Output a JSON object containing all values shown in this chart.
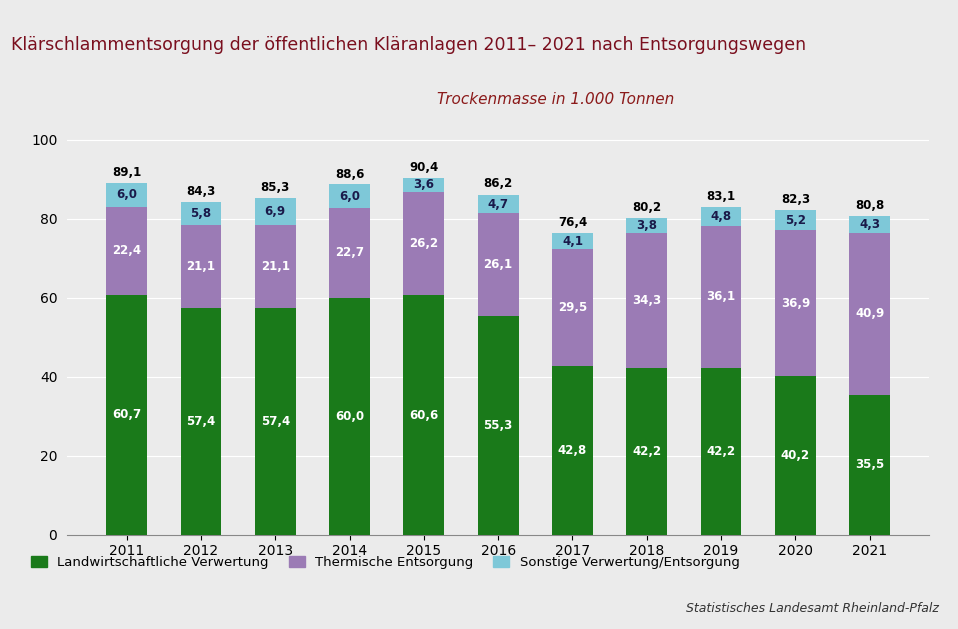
{
  "title": "Klärschlammentsorgung der öffentlichen Kläranlagen 2011– 2021 nach Entsorgungswegen",
  "subtitle": "Trockenmasse in 1.000 Tonnen",
  "years": [
    2011,
    2012,
    2013,
    2014,
    2015,
    2016,
    2017,
    2018,
    2019,
    2020,
    2021
  ],
  "landwirtschaft": [
    60.7,
    57.4,
    57.4,
    60.0,
    60.6,
    55.3,
    42.8,
    42.2,
    42.2,
    40.2,
    35.5
  ],
  "thermisch": [
    22.4,
    21.1,
    21.1,
    22.7,
    26.2,
    26.1,
    29.5,
    34.3,
    36.1,
    36.9,
    40.9
  ],
  "sonstige": [
    6.0,
    5.8,
    6.9,
    6.0,
    3.6,
    4.7,
    4.1,
    3.8,
    4.8,
    5.2,
    4.3
  ],
  "totals": [
    89.1,
    84.3,
    85.3,
    88.6,
    90.4,
    86.2,
    76.4,
    80.2,
    83.1,
    82.3,
    80.8
  ],
  "color_landwirtschaft": "#1a7a1a",
  "color_thermisch": "#9b7bb5",
  "color_sonstige": "#7ec8d8",
  "color_title": "#7a0f1e",
  "color_subtitle": "#8b1a1a",
  "color_background": "#ebebeb",
  "color_title_bar": "#7a0f1e",
  "color_header_bg": "#e8e8e8",
  "ylim": [
    0,
    105
  ],
  "yticks": [
    0,
    20,
    40,
    60,
    80,
    100
  ],
  "legend_landwirtschaft": "Landwirtschaftliche Verwertung",
  "legend_thermisch": "Thermische Entsorgung",
  "legend_sonstige": "Sonstige Verwertung/Entsorgung",
  "source_text": "Statistisches Landesamt Rheinland-Pfalz",
  "bar_width": 0.55
}
